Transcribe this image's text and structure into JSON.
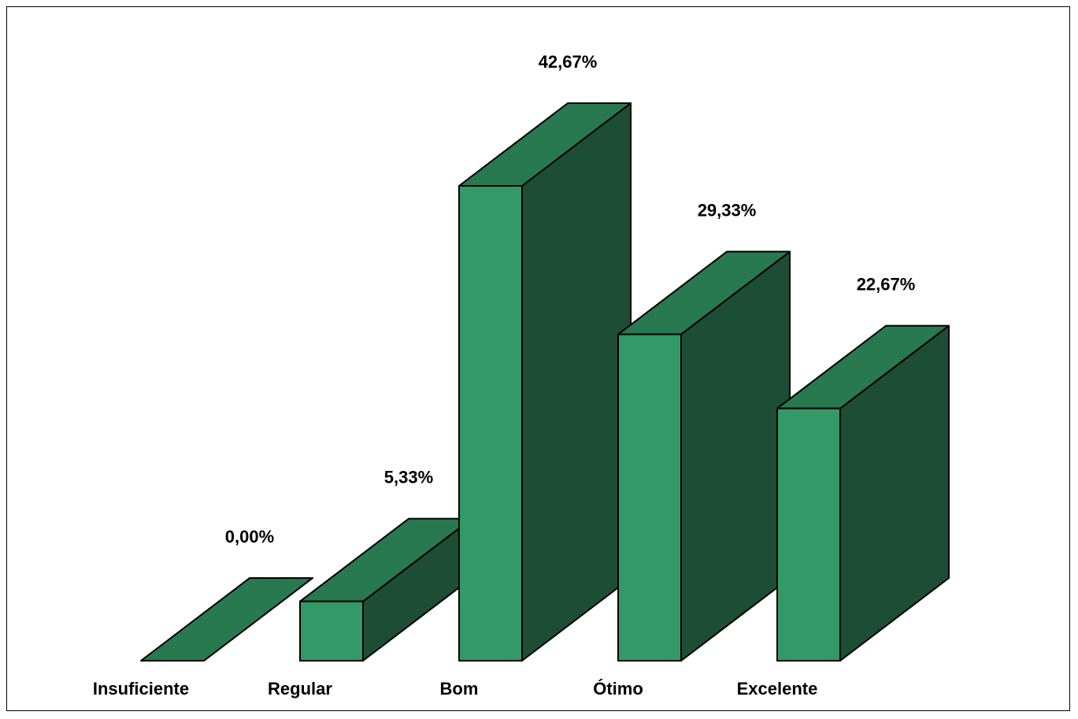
{
  "chart_data": {
    "type": "bar",
    "categories": [
      "Insuficiente",
      "Regular",
      "Bom",
      "Ótimo",
      "Excelente"
    ],
    "values": [
      0.0,
      5.33,
      42.67,
      29.33,
      22.67
    ],
    "value_labels": [
      "0,00%",
      "5,33%",
      "42,67%",
      "29,33%",
      "22,67%"
    ],
    "ylim": [
      0,
      42.67
    ],
    "grid": false,
    "legend": "none",
    "style": "3d",
    "colors": {
      "front": "#339966",
      "top": "#287850",
      "side": "#1d4d35",
      "stroke": "#000000"
    }
  }
}
